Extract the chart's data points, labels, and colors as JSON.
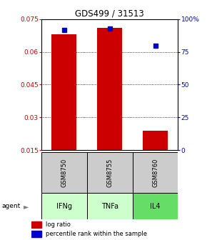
{
  "title": "GDS499 / 31513",
  "samples": [
    "GSM8750",
    "GSM8755",
    "GSM8760"
  ],
  "agents": [
    "IFNg",
    "TNFa",
    "IL4"
  ],
  "log_ratios": [
    0.068,
    0.071,
    0.024
  ],
  "percentile_ranks": [
    92,
    93,
    80
  ],
  "ylim_left": [
    0.015,
    0.075
  ],
  "ylim_right": [
    0,
    100
  ],
  "yticks_left": [
    0.015,
    0.03,
    0.045,
    0.06,
    0.075
  ],
  "yticks_right": [
    0,
    25,
    50,
    75,
    100
  ],
  "ytick_labels_left": [
    "0.015",
    "0.03",
    "0.045",
    "0.06",
    "0.075"
  ],
  "ytick_labels_right": [
    "0",
    "25",
    "50",
    "75",
    "100%"
  ],
  "bar_color": "#cc0000",
  "dot_color": "#0000cc",
  "sample_box_color": "#cccccc",
  "agent_colors": [
    "#ccffcc",
    "#ccffcc",
    "#66dd66"
  ],
  "legend_bar_label": "log ratio",
  "legend_dot_label": "percentile rank within the sample",
  "bar_width": 0.55,
  "x_positions": [
    0,
    1,
    2
  ],
  "xlim": [
    -0.5,
    2.5
  ]
}
